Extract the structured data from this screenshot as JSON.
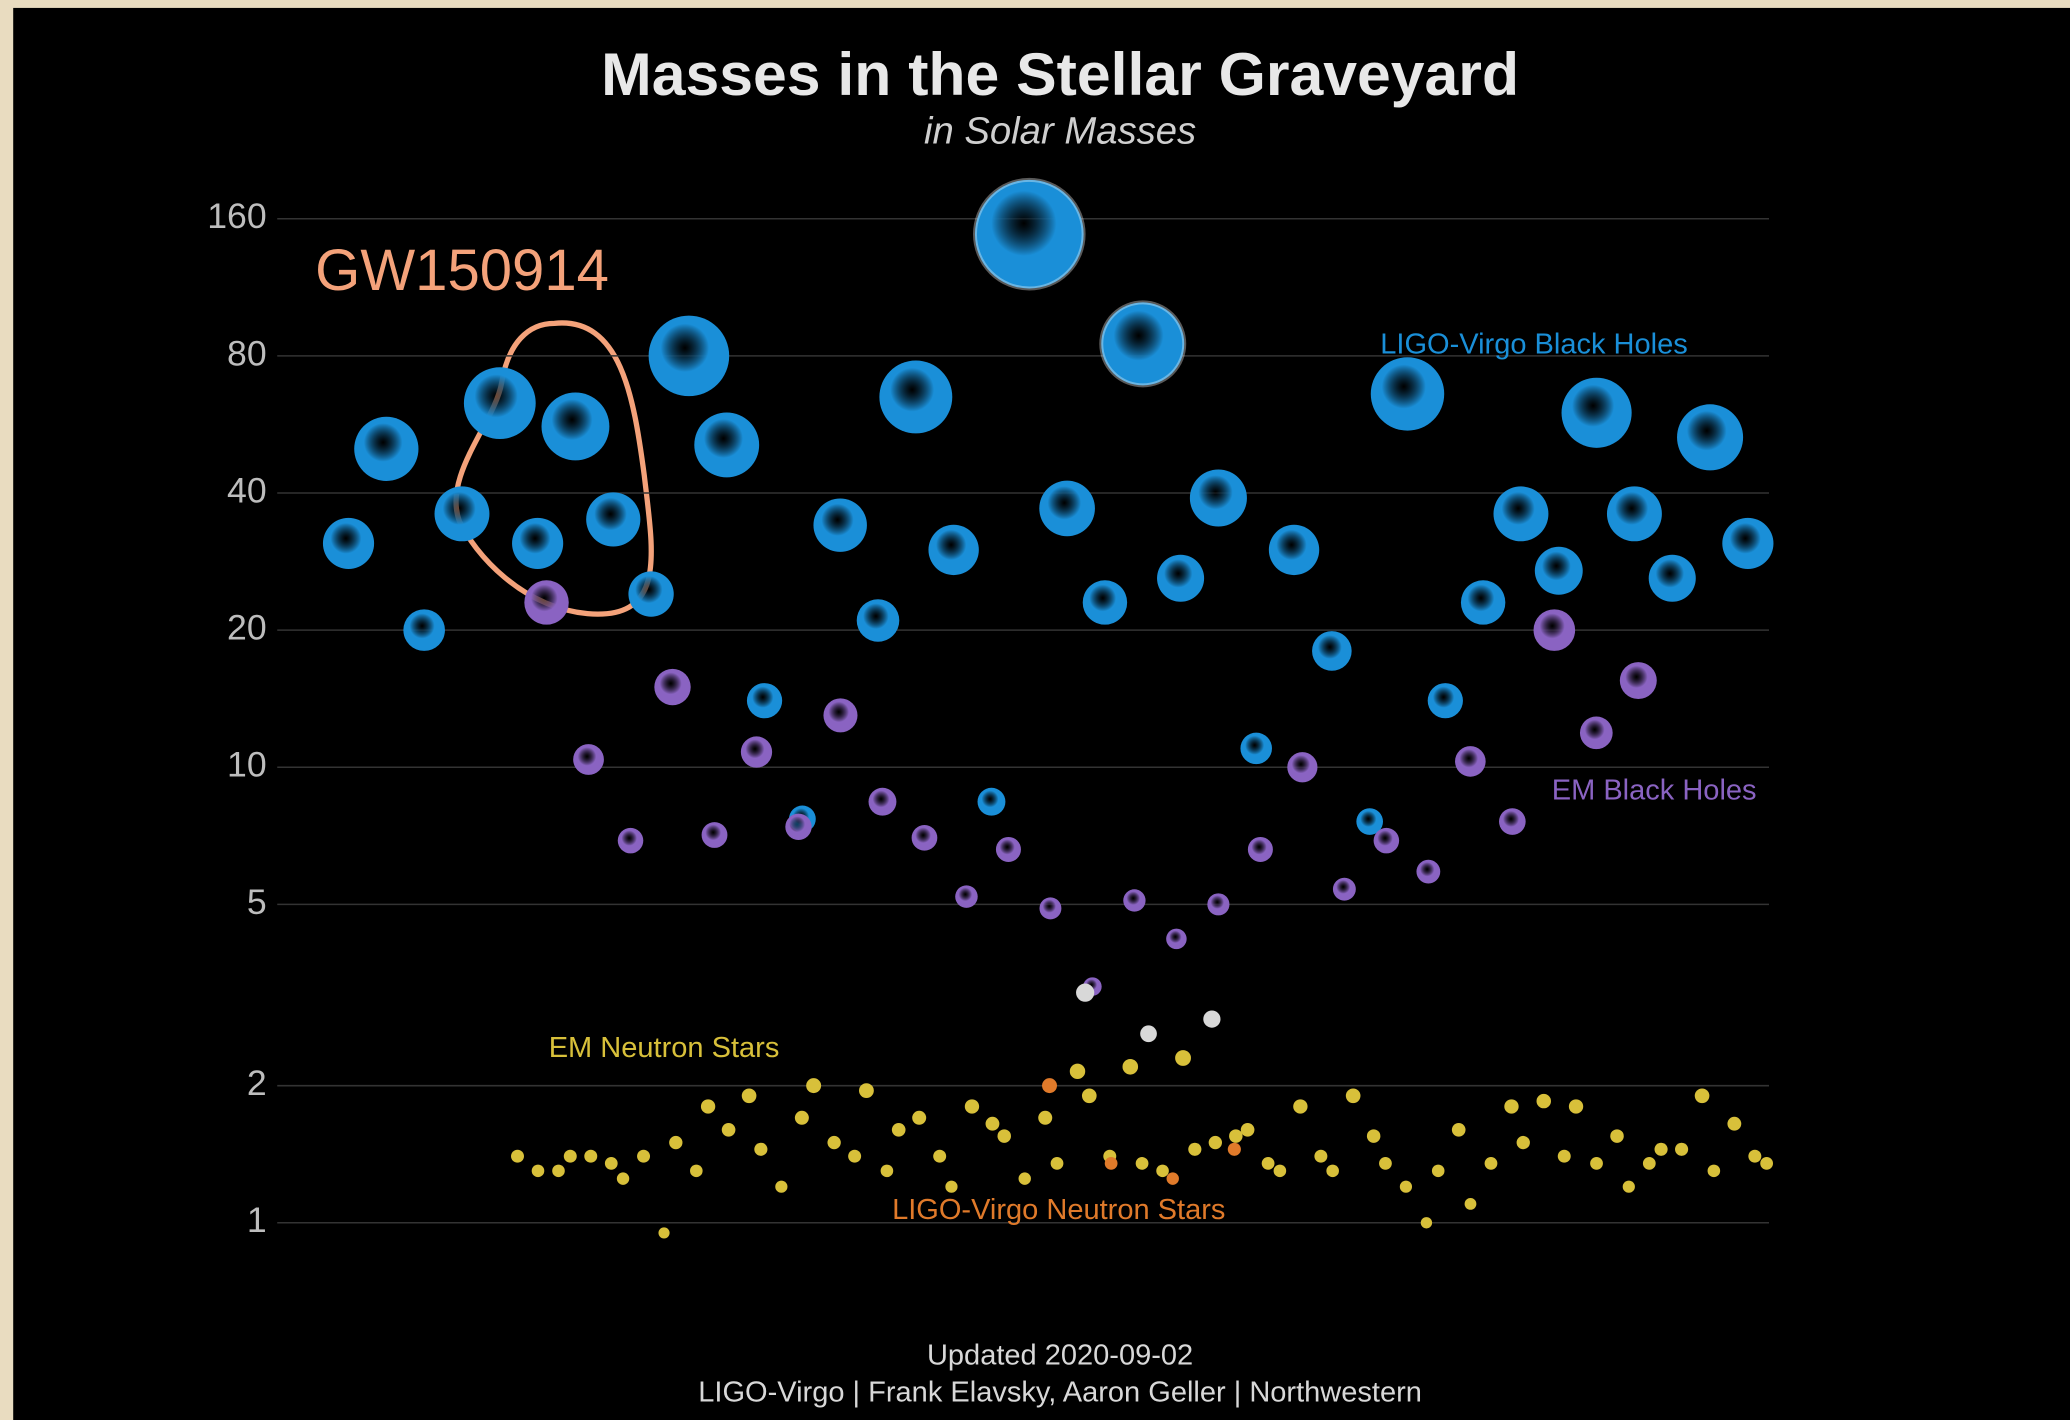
{
  "chart_data": {
    "type": "scatter",
    "title": "Masses in the Stellar Graveyard",
    "subtitle": "in Solar Masses",
    "annotation": "GW150914",
    "footer": [
      "Updated 2020-09-02",
      "LIGO-Virgo | Frank Elavsky, Aaron Geller | Northwestern"
    ],
    "log_y": true,
    "grid": true,
    "ylim": [
      0.8,
      190
    ],
    "yticks": [
      1,
      2,
      5,
      10,
      20,
      40,
      80,
      160
    ],
    "series": [
      {
        "name": "LIGO-Virgo Black Holes",
        "color": "#1a8fd8",
        "values": [
          31,
          50,
          20,
          36,
          63,
          31,
          56,
          35,
          24,
          80,
          51,
          14,
          7.7,
          34,
          21,
          65,
          30,
          8.4,
          148,
          37,
          23,
          85,
          26,
          39,
          11,
          30,
          18,
          7.6,
          66,
          14,
          23,
          36,
          27,
          60,
          36,
          26,
          53,
          31
        ]
      },
      {
        "name": "EM Black Holes",
        "color": "#8a63c2",
        "values": [
          23,
          10.4,
          6.9,
          15,
          7.1,
          10.8,
          7.4,
          13,
          8.4,
          7,
          5.2,
          6.6,
          4.9,
          3.3,
          5.1,
          4.2,
          5,
          6.6,
          10,
          5.4,
          6.9,
          5.9,
          10.3,
          7.6,
          20,
          11.9,
          15.5
        ]
      },
      {
        "name": "EM Neutron Stars",
        "color": "#d8c03a",
        "values": [
          1.4,
          1.3,
          1.3,
          1.4,
          1.4,
          1.35,
          1.25,
          1.4,
          0.95,
          1.5,
          1.3,
          1.8,
          1.6,
          1.9,
          1.45,
          1.2,
          1.7,
          2.0,
          1.5,
          1.4,
          1.95,
          1.3,
          1.6,
          1.7,
          1.4,
          1.2,
          1.8,
          1.65,
          1.55,
          1.25,
          1.7,
          1.35,
          2.15,
          1.9,
          1.4,
          2.2,
          1.35,
          1.3,
          2.3,
          1.45,
          1.5,
          1.55,
          1.6,
          1.35,
          1.3,
          1.8,
          1.4,
          1.3,
          1.9,
          1.55,
          1.35,
          1.2,
          1.0,
          1.3,
          1.6,
          1.1,
          1.35,
          1.8,
          1.5,
          1.85,
          1.4,
          1.8,
          1.35,
          1.55,
          1.2,
          1.35,
          1.45,
          1.45,
          1.9,
          1.3,
          1.65,
          1.4,
          1.35
        ]
      },
      {
        "name": "LIGO-Virgo Neutron Stars",
        "color": "#e07a2a",
        "values": [
          2.0,
          1.35,
          1.25,
          1.45
        ]
      },
      {
        "color": "#d8d8d8",
        "values": [
          3.2,
          2.6,
          2.8
        ]
      }
    ]
  }
}
